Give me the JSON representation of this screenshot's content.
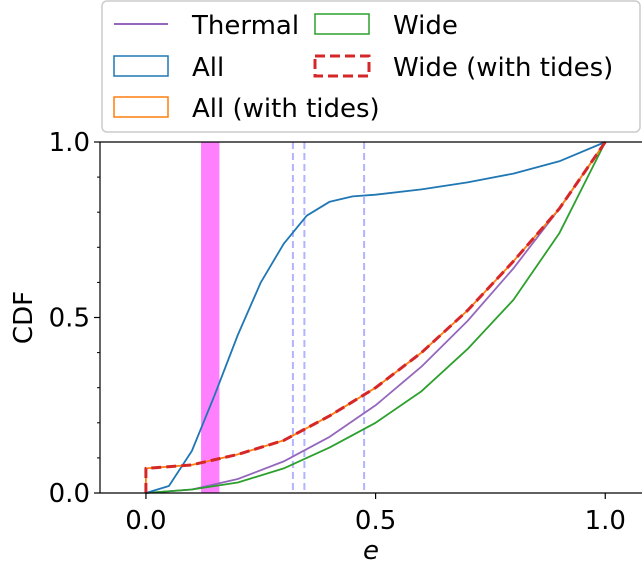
{
  "chart_data": {
    "type": "line",
    "xlabel": "e",
    "ylabel": "CDF",
    "xlim": [
      -0.1,
      1.08
    ],
    "ylim": [
      0.0,
      1.0
    ],
    "xticks": [
      0.0,
      0.5,
      1.0
    ],
    "xtick_labels": [
      "0.0",
      "0.5",
      "1.0"
    ],
    "yticks": [
      0.0,
      0.5,
      1.0
    ],
    "ytick_labels": [
      "0.0",
      "0.5",
      "1.0"
    ],
    "grid": false,
    "legend_placement": "top",
    "legend": [
      {
        "label": "Thermal",
        "color": "#9467bd",
        "style": "line"
      },
      {
        "label": "Wide",
        "color": "#2ca02c",
        "style": "box"
      },
      {
        "label": "All",
        "color": "#1f77b4",
        "style": "box"
      },
      {
        "label": "Wide (with tides)",
        "color": "#d62728",
        "style": "dashed-box"
      },
      {
        "label": "All (with tides)",
        "color": "#ff7f0e",
        "style": "box"
      }
    ],
    "shaded_band": {
      "x": [
        0.12,
        0.16
      ],
      "color": "#ff80ff"
    },
    "vertical_lines": {
      "x": [
        0.32,
        0.345,
        0.475
      ],
      "color": "#b3b3ff",
      "style": "dashed"
    },
    "series": [
      {
        "name": "Thermal",
        "color": "#9467bd",
        "style": "solid",
        "x": [
          0.0,
          0.1,
          0.2,
          0.3,
          0.4,
          0.5,
          0.6,
          0.7,
          0.8,
          0.9,
          1.0
        ],
        "y": [
          0.0,
          0.01,
          0.04,
          0.09,
          0.16,
          0.25,
          0.36,
          0.49,
          0.64,
          0.81,
          1.0
        ]
      },
      {
        "name": "Wide",
        "color": "#2ca02c",
        "style": "solid",
        "x": [
          0.0,
          0.1,
          0.2,
          0.3,
          0.4,
          0.5,
          0.6,
          0.7,
          0.8,
          0.9,
          1.0
        ],
        "y": [
          0.0,
          0.01,
          0.03,
          0.07,
          0.13,
          0.2,
          0.29,
          0.41,
          0.55,
          0.74,
          1.0
        ]
      },
      {
        "name": "All",
        "color": "#1f77b4",
        "style": "solid",
        "x": [
          0.0,
          0.05,
          0.1,
          0.15,
          0.2,
          0.25,
          0.3,
          0.35,
          0.4,
          0.45,
          0.5,
          0.6,
          0.7,
          0.8,
          0.9,
          1.0
        ],
        "y": [
          0.0,
          0.02,
          0.12,
          0.28,
          0.45,
          0.6,
          0.71,
          0.79,
          0.83,
          0.845,
          0.85,
          0.865,
          0.885,
          0.91,
          0.945,
          1.0
        ]
      },
      {
        "name": "All (with tides)",
        "color": "#ff7f0e",
        "style": "solid",
        "x": [
          0.0,
          0.0,
          0.1,
          0.2,
          0.3,
          0.4,
          0.5,
          0.6,
          0.7,
          0.8,
          0.9,
          1.0
        ],
        "y": [
          0.0,
          0.07,
          0.08,
          0.11,
          0.15,
          0.22,
          0.3,
          0.4,
          0.52,
          0.66,
          0.81,
          1.0
        ]
      },
      {
        "name": "Wide (with tides)",
        "color": "#d62728",
        "style": "dashed",
        "x": [
          0.0,
          0.0,
          0.1,
          0.2,
          0.3,
          0.4,
          0.5,
          0.6,
          0.7,
          0.8,
          0.9,
          1.0
        ],
        "y": [
          0.0,
          0.07,
          0.08,
          0.11,
          0.15,
          0.22,
          0.3,
          0.4,
          0.52,
          0.66,
          0.81,
          1.0
        ]
      }
    ]
  }
}
